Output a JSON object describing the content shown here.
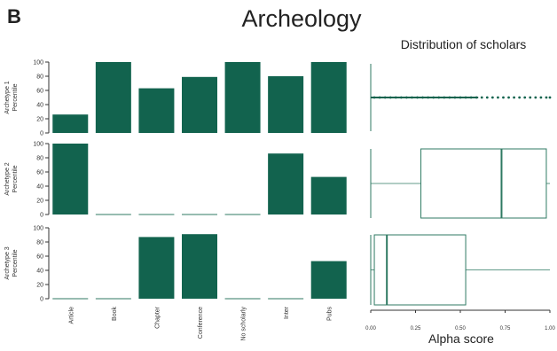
{
  "figure": {
    "panel_letter": "B",
    "title": "Archeology",
    "right_title": "Distribution of scholars"
  },
  "colors": {
    "fill": "#12634e",
    "stroke": "#2f7a63",
    "axis": "#333333"
  },
  "chart_data": [
    {
      "type": "bar",
      "categories": [
        "Article",
        "Book",
        "Chapter",
        "Conference",
        "No scholarly",
        "Inter",
        "Pubs"
      ],
      "ylim": [
        0,
        100
      ],
      "yticks": [
        0,
        20,
        40,
        60,
        80,
        100
      ],
      "panels": [
        {
          "ylabel_line1": "Archetype 1",
          "ylabel_line2": "Percentile",
          "values": [
            26,
            100,
            63,
            79,
            100,
            80,
            100
          ]
        },
        {
          "ylabel_line1": "Archetype 2",
          "ylabel_line2": "Percentile",
          "values": [
            100,
            0,
            0,
            0,
            0,
            86,
            53
          ]
        },
        {
          "ylabel_line1": "Archetype 3",
          "ylabel_line2": "Percentile",
          "values": [
            0,
            0,
            87,
            91,
            0,
            0,
            53
          ]
        }
      ]
    },
    {
      "type": "box",
      "xlabel": "Alpha score",
      "xlim": [
        0,
        1
      ],
      "xticks": [
        "0.00",
        "0.25",
        "0.50",
        "0.75",
        "1.00"
      ],
      "panels": [
        {
          "min": 0,
          "q1": 0,
          "median": 0,
          "q3": 0,
          "max": 0,
          "outliers": [
            0.02,
            0.05,
            0.08,
            0.11,
            0.14,
            0.17,
            0.2,
            0.23,
            0.26,
            0.29,
            0.32,
            0.35,
            0.38,
            0.41,
            0.44,
            0.47,
            0.5,
            0.53,
            0.56,
            0.59,
            0.62,
            0.65,
            0.68,
            0.71,
            0.74,
            0.77,
            0.8,
            0.83,
            0.86,
            0.89,
            0.92,
            0.95,
            0.98,
            1.0
          ]
        },
        {
          "min": 0.0,
          "q1": 0.28,
          "median": 0.73,
          "q3": 0.98,
          "max": 1.0,
          "outliers": []
        },
        {
          "min": 0.0,
          "q1": 0.02,
          "median": 0.09,
          "q3": 0.53,
          "max": 1.0,
          "outliers": []
        }
      ]
    }
  ]
}
